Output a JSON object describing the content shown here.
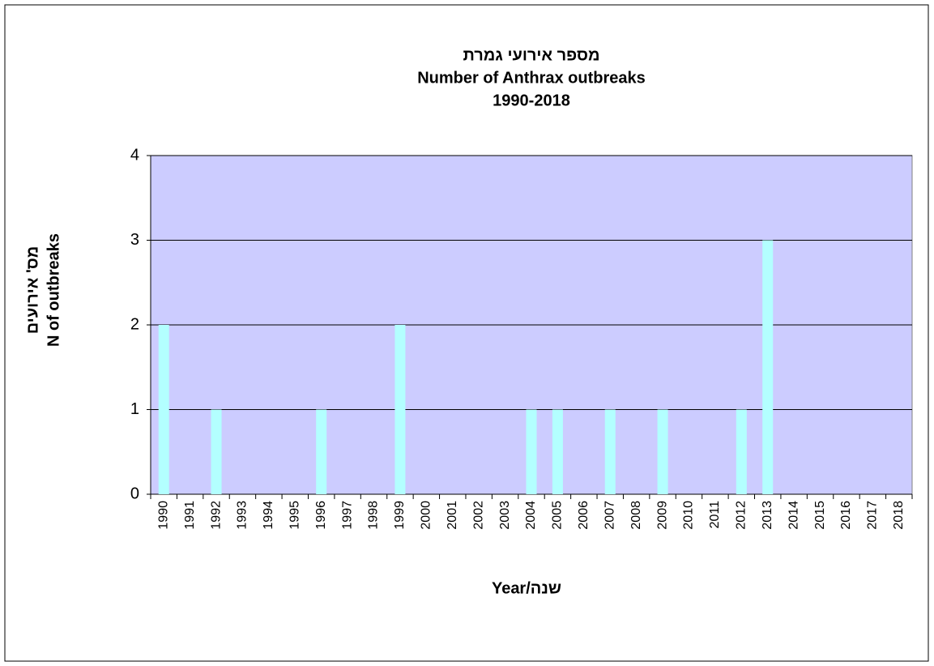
{
  "chart_data": {
    "type": "bar",
    "title": [
      "מספר אירועי גמרת",
      "Number of Anthrax outbreaks",
      "1990-2018"
    ],
    "x_label": "Year/שנה",
    "y_label": [
      "מס' אירועים",
      "N of outbreaks"
    ],
    "categories": [
      "1990",
      "1991",
      "1992",
      "1993",
      "1994",
      "1995",
      "1996",
      "1997",
      "1998",
      "1999",
      "2000",
      "2001",
      "2002",
      "2003",
      "2004",
      "2005",
      "2006",
      "2007",
      "2008",
      "2009",
      "2010",
      "2011",
      "2012",
      "2013",
      "2014",
      "2015",
      "2016",
      "2017",
      "2018"
    ],
    "values": [
      2,
      0,
      1,
      0,
      0,
      0,
      1,
      0,
      0,
      2,
      0,
      0,
      0,
      0,
      1,
      1,
      0,
      1,
      0,
      1,
      0,
      0,
      1,
      3,
      0,
      0,
      0,
      0,
      0
    ],
    "color": "#b3ffff",
    "plot_background": "#ccccff",
    "ylim": [
      0,
      4
    ],
    "yticks": [
      0,
      1,
      2,
      3,
      4
    ],
    "grid": true
  }
}
